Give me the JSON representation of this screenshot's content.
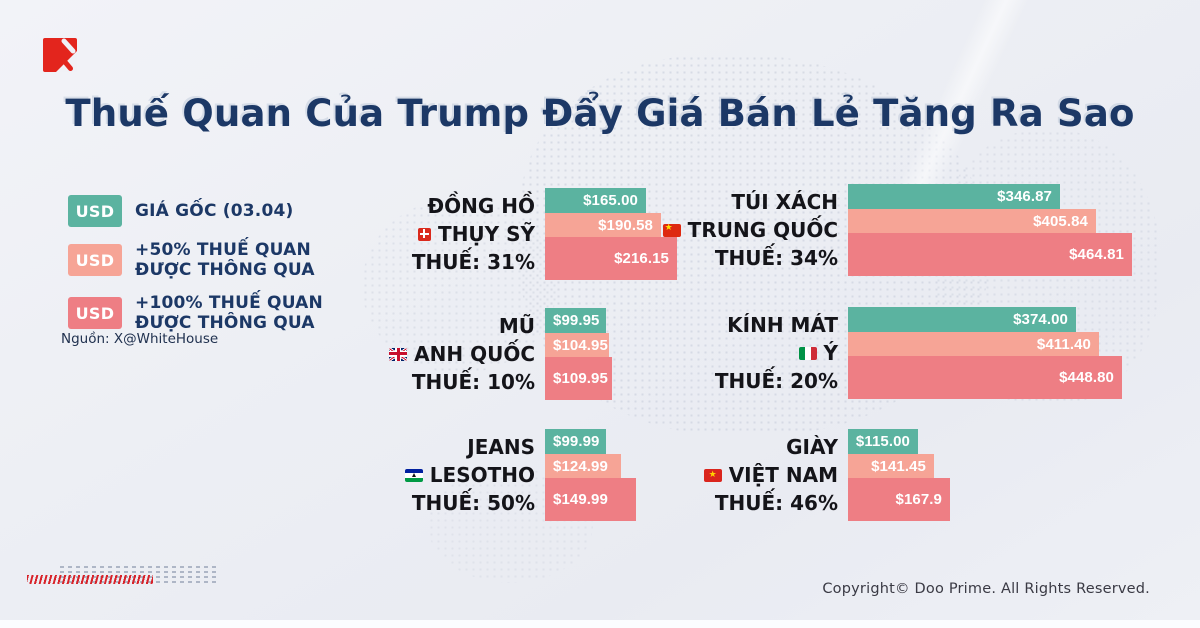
{
  "page": {
    "title": "Thuế Quan Của Trump Đẩy Giá Bán Lẻ Tăng Ra Sao",
    "source_note": "Nguồn: X@WhiteHouse",
    "copyright": "Copyright© Doo Prime. All Rights Reserved.",
    "logo_name": "doo-prime-logo"
  },
  "colors": {
    "base": "#5bb3a0",
    "plus50": "#f6a496",
    "plus100": "#ee7e84",
    "navy": "#1c3866",
    "text_dark": "#141419",
    "background": "#edeff4",
    "logo_red": "#e3251d"
  },
  "legend": {
    "items": [
      {
        "swatch_label": "USD",
        "color_key": "base",
        "lines": [
          "GIÁ GỐC (03.04)"
        ]
      },
      {
        "swatch_label": "USD",
        "color_key": "plus50",
        "lines": [
          "+50% THUẾ QUAN",
          "ĐƯỢC THÔNG QUA"
        ]
      },
      {
        "swatch_label": "USD",
        "color_key": "plus100",
        "lines": [
          "+100% THUẾ QUAN",
          "ĐƯỢC THÔNG QUA"
        ]
      }
    ]
  },
  "chart_data": {
    "type": "bar",
    "orientation": "horizontal",
    "unit": "USD",
    "series": [
      "Giá gốc (03.04)",
      "+50% thuế quan được thông qua",
      "+100% thuế quan được thông qua"
    ],
    "groups": [
      {
        "product": "ĐỒNG HỒ",
        "country": "THỤY SỸ",
        "flag": "switzerland",
        "tariff_label": "THUẾ: 31%",
        "tariff_pct": 31,
        "column": "left",
        "values": [
          165.0,
          190.58,
          216.15
        ],
        "value_labels": [
          "$165.00",
          "$190.58",
          "$216.15"
        ],
        "label_align": "right"
      },
      {
        "product": "TÚI XÁCH",
        "country": "TRUNG QUỐC",
        "flag": "china",
        "tariff_label": "THUẾ: 34%",
        "tariff_pct": 34,
        "column": "right",
        "values": [
          346.87,
          405.84,
          464.81
        ],
        "value_labels": [
          "$346.87",
          "$405.84",
          "$464.81"
        ],
        "label_align": "right"
      },
      {
        "product": "MŨ",
        "country": "ANH QUỐC",
        "flag": "uk",
        "tariff_label": "THUẾ: 10%",
        "tariff_pct": 10,
        "column": "left",
        "values": [
          99.95,
          104.95,
          109.95
        ],
        "value_labels": [
          "$99.95",
          "$104.95",
          "$109.95"
        ],
        "label_align": "left"
      },
      {
        "product": "KÍNH MÁT",
        "country": "Ý",
        "flag": "italy",
        "tariff_label": "THUẾ: 20%",
        "tariff_pct": 20,
        "column": "right",
        "values": [
          374.0,
          411.4,
          448.8
        ],
        "value_labels": [
          "$374.00",
          "$411.40",
          "$448.80"
        ],
        "label_align": "right"
      },
      {
        "product": "JEANS",
        "country": "LESOTHO",
        "flag": "lesotho",
        "tariff_label": "THUẾ: 50%",
        "tariff_pct": 50,
        "column": "left",
        "values": [
          99.99,
          124.99,
          149.99
        ],
        "value_labels": [
          "$99.99",
          "$124.99",
          "$149.99"
        ],
        "label_align": "left"
      },
      {
        "product": "GIÀY",
        "country": "VIỆT NAM",
        "flag": "vietnam",
        "tariff_label": "THUẾ: 46%",
        "tariff_pct": 46,
        "column": "right",
        "values": [
          115.0,
          141.45,
          167.9
        ],
        "value_labels": [
          "$115.00",
          "$141.45",
          "$167.9"
        ],
        "label_align": "right"
      }
    ]
  }
}
